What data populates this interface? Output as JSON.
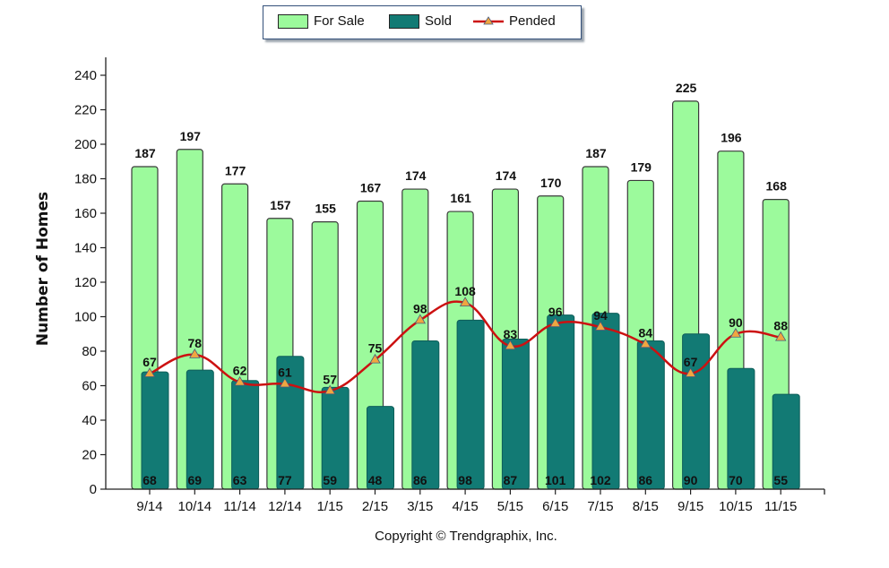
{
  "chart_data": {
    "type": "bar",
    "title": "",
    "xlabel": "",
    "ylabel": "Number of Homes",
    "ylim": [
      0,
      240
    ],
    "yticks": [
      0,
      20,
      40,
      60,
      80,
      100,
      120,
      140,
      160,
      180,
      200,
      220,
      240
    ],
    "grid": false,
    "legend_position": "top-center",
    "categories": [
      "9/14",
      "10/14",
      "11/14",
      "12/14",
      "1/15",
      "2/15",
      "3/15",
      "4/15",
      "5/15",
      "6/15",
      "7/15",
      "8/15",
      "9/15",
      "10/15",
      "11/15"
    ],
    "series": [
      {
        "name": "For Sale",
        "type": "bar",
        "color": "#9cfa9c",
        "values": [
          187,
          197,
          177,
          157,
          155,
          167,
          174,
          161,
          174,
          170,
          187,
          179,
          225,
          196,
          168
        ]
      },
      {
        "name": "Sold",
        "type": "bar",
        "color": "#127a74",
        "values": [
          68,
          69,
          63,
          77,
          59,
          48,
          86,
          98,
          87,
          101,
          102,
          86,
          90,
          70,
          55
        ]
      },
      {
        "name": "Pended",
        "type": "line",
        "color": "#cc1111",
        "marker_color": "#f0a640",
        "values": [
          67,
          78,
          62,
          61,
          57,
          75,
          98,
          108,
          83,
          96,
          94,
          84,
          67,
          90,
          88
        ]
      }
    ]
  },
  "legend": {
    "for_sale": "For Sale",
    "sold": "Sold",
    "pended": "Pended"
  },
  "footer": {
    "copyright": "Copyright © Trendgraphix, Inc."
  }
}
